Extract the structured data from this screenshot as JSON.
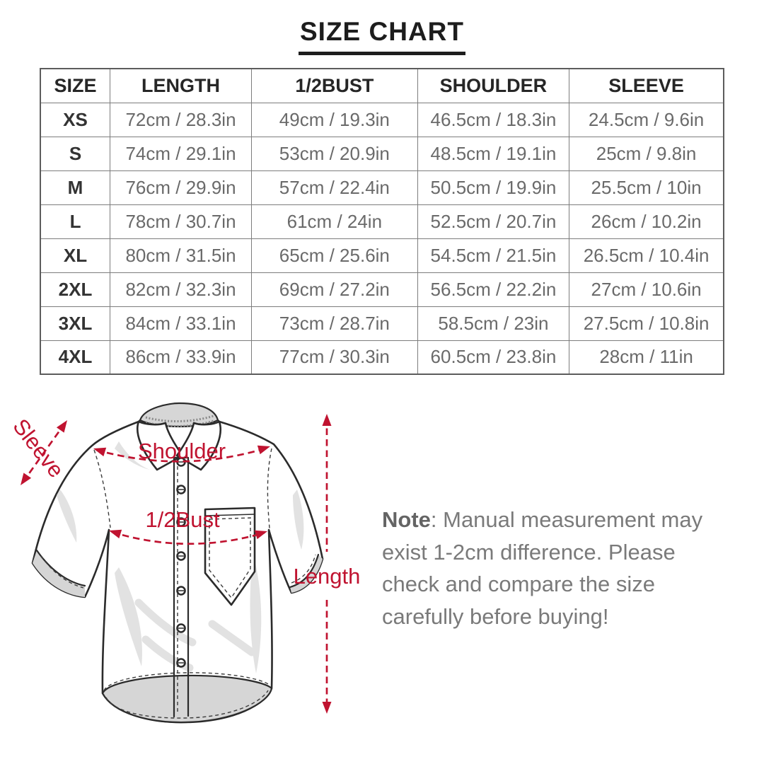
{
  "chart_data": {
    "type": "table",
    "title": "SIZE CHART",
    "columns": [
      "SIZE",
      "LENGTH",
      "1/2BUST",
      "SHOULDER",
      "SLEEVE"
    ],
    "rows": [
      [
        "XS",
        "72cm / 28.3in",
        "49cm / 19.3in",
        "46.5cm / 18.3in",
        "24.5cm / 9.6in"
      ],
      [
        "S",
        "74cm / 29.1in",
        "53cm / 20.9in",
        "48.5cm / 19.1in",
        "25cm / 9.8in"
      ],
      [
        "M",
        "76cm / 29.9in",
        "57cm / 22.4in",
        "50.5cm / 19.9in",
        "25.5cm / 10in"
      ],
      [
        "L",
        "78cm / 30.7in",
        "61cm / 24in",
        "52.5cm / 20.7in",
        "26cm / 10.2in"
      ],
      [
        "XL",
        "80cm / 31.5in",
        "65cm / 25.6in",
        "54.5cm / 21.5in",
        "26.5cm / 10.4in"
      ],
      [
        "2XL",
        "82cm / 32.3in",
        "69cm / 27.2in",
        "56.5cm / 22.2in",
        "27cm / 10.6in"
      ],
      [
        "3XL",
        "84cm / 33.1in",
        "73cm / 28.7in",
        "58.5cm / 23in",
        "27.5cm / 10.8in"
      ],
      [
        "4XL",
        "86cm / 33.9in",
        "77cm / 30.3in",
        "60.5cm / 23.8in",
        "28cm / 11in"
      ]
    ]
  },
  "diagram": {
    "labels": {
      "sleeve": "Sleeve",
      "shoulder": "Shoulder",
      "half_bust": "1/2Bust",
      "length": "Length"
    }
  },
  "note": {
    "label": "Note",
    "text": ": Manual measurement may exist 1-2cm difference. Please check and compare the size carefully before buying!"
  },
  "colors": {
    "accent_red": "#c01330",
    "table_border": "#7d7d7d",
    "header_text": "#262626",
    "data_text": "#6a6a6a",
    "note_text": "#7a7a7a",
    "outline": "#2b2b2b"
  }
}
